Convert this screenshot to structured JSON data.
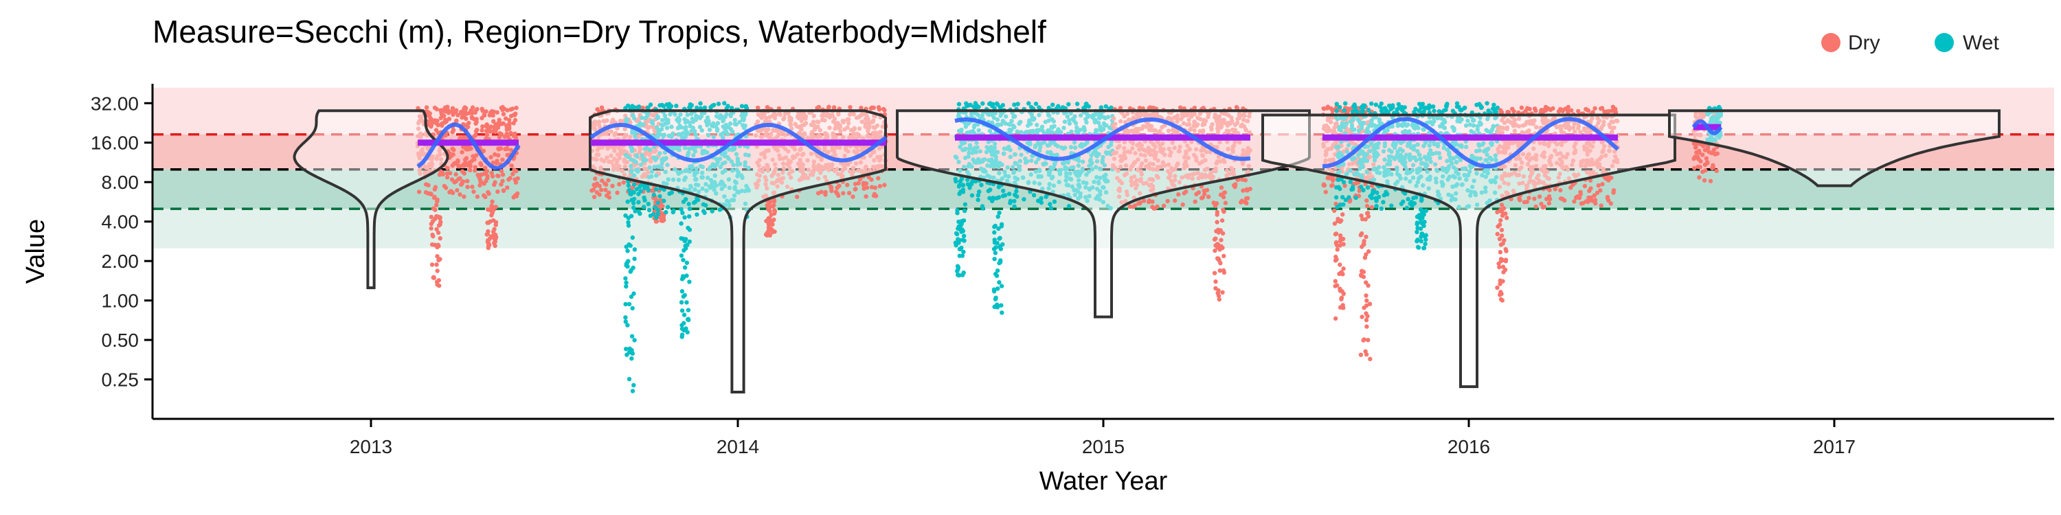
{
  "chart_data": {
    "type": "violin",
    "title": "Measure=Secchi (m), Region=Dry Tropics, Waterbody=Midshelf",
    "xlabel": "Water Year",
    "ylabel": "Value",
    "x_categories": [
      "2013",
      "2014",
      "2015",
      "2016",
      "2017"
    ],
    "y_scale": "log2",
    "ylim": [
      0.125,
      45
    ],
    "y_ticks": [
      0.25,
      0.5,
      1,
      2,
      4,
      8,
      16,
      32
    ],
    "y_tick_labels": [
      "0.25",
      "0.50",
      "1.00",
      "2.00",
      "4.00",
      "8.00",
      "16.00",
      "32.00"
    ],
    "grid": false,
    "legend": {
      "placement": "top-right",
      "entries": [
        {
          "label": "Dry",
          "color": "#F8766D"
        },
        {
          "label": "Wet",
          "color": "#00BFC4"
        }
      ]
    },
    "guideline_bands": [
      {
        "from": 18.5,
        "to": 42,
        "color": "#fde3e3"
      },
      {
        "from": 10,
        "to": 18.5,
        "color": "#f8c2c1"
      },
      {
        "from": 5,
        "to": 10,
        "color": "#b6dccf"
      },
      {
        "from": 2.5,
        "to": 5,
        "color": "#e3f1ec"
      }
    ],
    "reference_lines": [
      {
        "value": 18.5,
        "color": "#e11d1d"
      },
      {
        "value": 10,
        "color": "#000000"
      },
      {
        "value": 5,
        "color": "#00703c"
      }
    ],
    "violins": [
      {
        "year": "2013",
        "min": 1.25,
        "max": 28,
        "median": 12.5
      },
      {
        "year": "2014",
        "min": 0.2,
        "max": 28,
        "median": 12
      },
      {
        "year": "2015",
        "min": 0.75,
        "max": 28,
        "median": 14
      },
      {
        "year": "2016",
        "min": 0.22,
        "max": 26,
        "median": 14
      },
      {
        "year": "2017",
        "min": 7.5,
        "max": 28,
        "median": 26
      }
    ],
    "medians": [
      {
        "year": "2013",
        "season": "Dry",
        "value": 16
      },
      {
        "year": "2014",
        "season": "Wet",
        "value": 16
      },
      {
        "year": "2014",
        "season": "Dry",
        "value": 16
      },
      {
        "year": "2015",
        "season": "Wet",
        "value": 17.5
      },
      {
        "year": "2015",
        "season": "Dry",
        "value": 17.5
      },
      {
        "year": "2016",
        "season": "Wet",
        "value": 17.5
      },
      {
        "year": "2016",
        "season": "Dry",
        "value": 17.5
      },
      {
        "year": "2017",
        "season": "Wet",
        "value": 21
      }
    ],
    "series": [
      {
        "name": "Dry",
        "color": "#F8766D",
        "range_typical": [
          6,
          30
        ],
        "range_min": 0.22
      },
      {
        "name": "Wet",
        "color": "#00BFC4",
        "range_typical": [
          4,
          32
        ],
        "range_min": 0.2
      }
    ]
  }
}
